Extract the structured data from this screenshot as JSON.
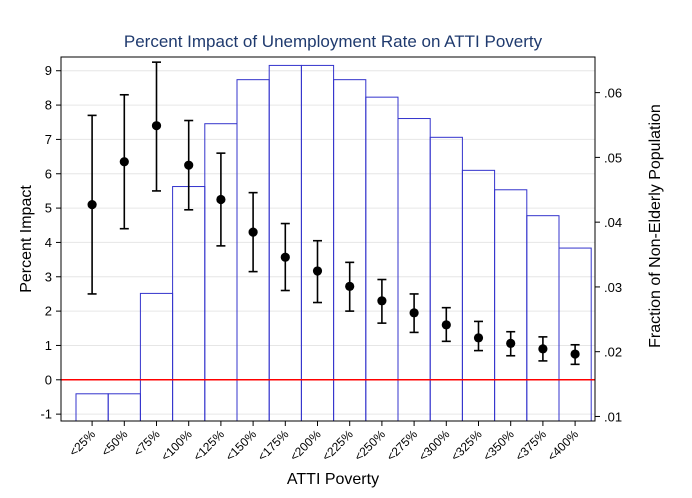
{
  "chart_data": {
    "type": "bar+errorbar",
    "title": "Percent Impact of Unemployment Rate on ATTI Poverty",
    "xlabel": "ATTI Poverty",
    "ylabel_left": "Percent Impact",
    "ylabel_right": "Fraction of Non-Elderly Population",
    "categories": [
      "<25%",
      "<50%",
      "<75%",
      "<100%",
      "<125%",
      "<150%",
      "<175%",
      "<200%",
      "<225%",
      "<250%",
      "<275%",
      "<300%",
      "<325%",
      "<350%",
      "<375%",
      "<400%"
    ],
    "left_axis": {
      "ylim": [
        -1.2,
        9.4
      ],
      "ticks": [
        -1,
        0,
        1,
        2,
        3,
        4,
        5,
        6,
        7,
        8,
        9
      ],
      "tick_labels": [
        "-1",
        "0",
        "1",
        "2",
        "3",
        "4",
        "5",
        "6",
        "7",
        "8",
        "9"
      ]
    },
    "right_axis": {
      "ylim": [
        0.0093,
        0.0655
      ],
      "ticks": [
        0.01,
        0.02,
        0.03,
        0.04,
        0.05,
        0.06
      ],
      "tick_labels": [
        ".01",
        ".02",
        ".03",
        ".04",
        ".05",
        ".06"
      ]
    },
    "series": [
      {
        "name": "Fraction of Non-Elderly Population",
        "type": "bar",
        "axis": "right",
        "color": "#3333cc",
        "values": [
          0.0135,
          0.0135,
          0.029,
          0.0455,
          0.0552,
          0.062,
          0.0642,
          0.0642,
          0.062,
          0.0593,
          0.056,
          0.0531,
          0.048,
          0.045,
          0.041,
          0.036
        ]
      },
      {
        "name": "Percent Impact",
        "type": "point_errorbar",
        "axis": "left",
        "color": "#000000",
        "values": [
          5.1,
          6.35,
          7.4,
          6.25,
          5.25,
          4.3,
          3.57,
          3.17,
          2.72,
          2.3,
          1.95,
          1.6,
          1.22,
          1.06,
          0.9,
          0.75
        ],
        "lower": [
          2.5,
          4.4,
          5.5,
          4.95,
          3.9,
          3.15,
          2.6,
          2.25,
          2.0,
          1.65,
          1.38,
          1.12,
          0.85,
          0.7,
          0.55,
          0.45
        ],
        "upper": [
          7.7,
          8.3,
          9.25,
          7.55,
          6.6,
          5.45,
          4.55,
          4.05,
          3.42,
          2.92,
          2.5,
          2.1,
          1.7,
          1.4,
          1.25,
          1.02
        ]
      }
    ],
    "reference_line": {
      "axis": "left",
      "value": 0,
      "color": "#ff0000"
    },
    "grid": "horizontal",
    "legend": "none"
  }
}
